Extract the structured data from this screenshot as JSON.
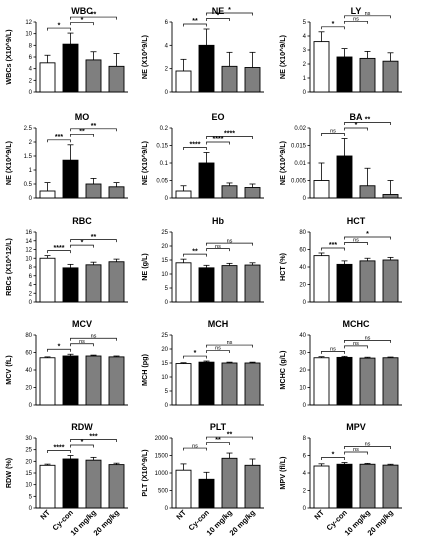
{
  "figure": {
    "categories": [
      "NT",
      "Cy-con",
      "10 mg/kg",
      "20 mg/kg"
    ],
    "colors": {
      "NT": "#ffffff",
      "Cy-con": "#000000",
      "10 mg/kg": "#7f7f7f",
      "20 mg/kg": "#7f7f7f"
    }
  },
  "chart_data": [
    {
      "type": "bar",
      "title": "WBC",
      "ylabel": "WBCs (X10^9/L)",
      "categories": [
        "NT",
        "Cy-con",
        "10 mg/kg",
        "20 mg/kg"
      ],
      "values": [
        5.0,
        8.2,
        5.5,
        4.4
      ],
      "errors": [
        1.3,
        1.9,
        1.4,
        2.2
      ],
      "ylim": [
        0,
        12
      ],
      "yticks": [
        0,
        2,
        4,
        6,
        8,
        10,
        12
      ],
      "significance": [
        {
          "a": 0,
          "b": 1,
          "label": "*"
        },
        {
          "a": 1,
          "b": 2,
          "label": "*"
        },
        {
          "a": 1,
          "b": 3,
          "label": "**"
        }
      ]
    },
    {
      "type": "bar",
      "title": "NE",
      "ylabel": "NE (X10^9/L)",
      "categories": [
        "NT",
        "Cy-con",
        "10 mg/kg",
        "20 mg/kg"
      ],
      "values": [
        1.8,
        4.0,
        2.2,
        2.1
      ],
      "errors": [
        1.0,
        1.4,
        1.2,
        1.3
      ],
      "ylim": [
        0,
        6
      ],
      "yticks": [
        0,
        2,
        4,
        6
      ],
      "significance": [
        {
          "a": 0,
          "b": 1,
          "label": "**"
        },
        {
          "a": 1,
          "b": 2,
          "label": "*"
        },
        {
          "a": 1,
          "b": 3,
          "label": "*"
        }
      ]
    },
    {
      "type": "bar",
      "title": "LY",
      "ylabel": "NE (X10^9/L)",
      "categories": [
        "NT",
        "Cy-con",
        "10 mg/kg",
        "20 mg/kg"
      ],
      "values": [
        3.6,
        2.5,
        2.4,
        2.2
      ],
      "errors": [
        0.7,
        0.6,
        0.5,
        0.6
      ],
      "ylim": [
        0,
        5
      ],
      "yticks": [
        0,
        1,
        2,
        3,
        4,
        5
      ],
      "significance": [
        {
          "a": 0,
          "b": 1,
          "label": "*"
        },
        {
          "a": 1,
          "b": 2,
          "label": "ns"
        },
        {
          "a": 1,
          "b": 3,
          "label": "ns"
        }
      ]
    },
    {
      "type": "bar",
      "title": "MO",
      "ylabel": "NE (X10^9/L)",
      "categories": [
        "NT",
        "Cy-con",
        "10 mg/kg",
        "20 mg/kg"
      ],
      "values": [
        0.25,
        1.35,
        0.5,
        0.4
      ],
      "errors": [
        0.3,
        0.55,
        0.2,
        0.15
      ],
      "ylim": [
        0,
        2.5
      ],
      "yticks": [
        0,
        0.5,
        1.0,
        1.5,
        2.0,
        2.5
      ],
      "significance": [
        {
          "a": 0,
          "b": 1,
          "label": "***"
        },
        {
          "a": 1,
          "b": 2,
          "label": "**"
        },
        {
          "a": 1,
          "b": 3,
          "label": "**"
        }
      ]
    },
    {
      "type": "bar",
      "title": "EO",
      "ylabel": "NE (X10^9/L)",
      "categories": [
        "NT",
        "Cy-con",
        "10 mg/kg",
        "20 mg/kg"
      ],
      "values": [
        0.02,
        0.1,
        0.035,
        0.03
      ],
      "errors": [
        0.015,
        0.03,
        0.008,
        0.01
      ],
      "ylim": [
        0,
        0.2
      ],
      "yticks": [
        0,
        0.05,
        0.1,
        0.15,
        0.2
      ],
      "significance": [
        {
          "a": 0,
          "b": 1,
          "label": "****"
        },
        {
          "a": 1,
          "b": 2,
          "label": "****"
        },
        {
          "a": 1,
          "b": 3,
          "label": "****"
        }
      ]
    },
    {
      "type": "bar",
      "title": "BA",
      "ylabel": "NE (X10^9/L)",
      "categories": [
        "NT",
        "Cy-con",
        "10 mg/kg",
        "20 mg/kg"
      ],
      "values": [
        0.005,
        0.012,
        0.0035,
        0.001
      ],
      "errors": [
        0.005,
        0.005,
        0.005,
        0.004
      ],
      "ylim": [
        0,
        0.02
      ],
      "yticks": [
        0,
        0.005,
        0.01,
        0.015,
        0.02
      ],
      "significance": [
        {
          "a": 0,
          "b": 1,
          "label": "ns"
        },
        {
          "a": 1,
          "b": 2,
          "label": "*"
        },
        {
          "a": 1,
          "b": 3,
          "label": "**"
        }
      ]
    },
    {
      "type": "bar",
      "title": "RBC",
      "ylabel": "RBCs (X10^12/L)",
      "categories": [
        "NT",
        "Cy-con",
        "10 mg/kg",
        "20 mg/kg"
      ],
      "values": [
        10.0,
        7.8,
        8.5,
        9.2
      ],
      "errors": [
        0.6,
        0.8,
        0.6,
        0.6
      ],
      "ylim": [
        0,
        16
      ],
      "yticks": [
        0,
        2,
        4,
        6,
        8,
        10,
        12,
        14,
        16
      ],
      "significance": [
        {
          "a": 0,
          "b": 1,
          "label": "****"
        },
        {
          "a": 1,
          "b": 2,
          "label": "*"
        },
        {
          "a": 1,
          "b": 3,
          "label": "**"
        }
      ]
    },
    {
      "type": "bar",
      "title": "Hb",
      "ylabel": "NE (g/L)",
      "categories": [
        "NT",
        "Cy-con",
        "10 mg/kg",
        "20 mg/kg"
      ],
      "values": [
        14.0,
        12.2,
        13.0,
        13.2
      ],
      "errors": [
        1.3,
        0.9,
        0.8,
        0.8
      ],
      "ylim": [
        0,
        25
      ],
      "yticks": [
        0,
        5,
        10,
        15,
        20,
        25
      ],
      "significance": [
        {
          "a": 0,
          "b": 1,
          "label": "**"
        },
        {
          "a": 1,
          "b": 2,
          "label": "ns"
        },
        {
          "a": 1,
          "b": 3,
          "label": "ns"
        }
      ]
    },
    {
      "type": "bar",
      "title": "HCT",
      "ylabel": "HCT (%)",
      "categories": [
        "NT",
        "Cy-con",
        "10 mg/kg",
        "20 mg/kg"
      ],
      "values": [
        53,
        43,
        47,
        48
      ],
      "errors": [
        3,
        4,
        3,
        3
      ],
      "ylim": [
        0,
        80
      ],
      "yticks": [
        0,
        20,
        40,
        60,
        80
      ],
      "significance": [
        {
          "a": 0,
          "b": 1,
          "label": "***"
        },
        {
          "a": 1,
          "b": 2,
          "label": "ns"
        },
        {
          "a": 1,
          "b": 3,
          "label": "*"
        }
      ]
    },
    {
      "type": "bar",
      "title": "MCV",
      "ylabel": "MCV (fL)",
      "categories": [
        "NT",
        "Cy-con",
        "10 mg/kg",
        "20 mg/kg"
      ],
      "values": [
        54,
        56,
        56,
        55
      ],
      "errors": [
        1,
        2,
        1,
        1
      ],
      "ylim": [
        0,
        80
      ],
      "yticks": [
        0,
        20,
        40,
        60,
        80
      ],
      "significance": [
        {
          "a": 0,
          "b": 1,
          "label": "*"
        },
        {
          "a": 1,
          "b": 2,
          "label": "ns"
        },
        {
          "a": 1,
          "b": 3,
          "label": "ns"
        }
      ]
    },
    {
      "type": "bar",
      "title": "MCH",
      "ylabel": "MCH (pg)",
      "categories": [
        "NT",
        "Cy-con",
        "10 mg/kg",
        "20 mg/kg"
      ],
      "values": [
        14.8,
        15.3,
        15.0,
        15.0
      ],
      "errors": [
        0.3,
        0.4,
        0.3,
        0.3
      ],
      "ylim": [
        0,
        25
      ],
      "yticks": [
        0,
        5,
        10,
        15,
        20,
        25
      ],
      "significance": [
        {
          "a": 0,
          "b": 1,
          "label": "*"
        },
        {
          "a": 1,
          "b": 2,
          "label": "ns"
        },
        {
          "a": 1,
          "b": 3,
          "label": "ns"
        }
      ]
    },
    {
      "type": "bar",
      "title": "MCHC",
      "ylabel": "MCHC (g/L)",
      "categories": [
        "NT",
        "Cy-con",
        "10 mg/kg",
        "20 mg/kg"
      ],
      "values": [
        27.0,
        27.2,
        26.8,
        27.0
      ],
      "errors": [
        0.6,
        0.6,
        0.5,
        0.4
      ],
      "ylim": [
        0,
        40
      ],
      "yticks": [
        0,
        10,
        20,
        30,
        40
      ],
      "significance": [
        {
          "a": 0,
          "b": 1,
          "label": "ns"
        },
        {
          "a": 1,
          "b": 2,
          "label": "ns"
        },
        {
          "a": 1,
          "b": 3,
          "label": "ns"
        }
      ]
    },
    {
      "type": "bar",
      "title": "RDW",
      "ylabel": "RDW (%)",
      "categories": [
        "NT",
        "Cy-con",
        "10 mg/kg",
        "20 mg/kg"
      ],
      "values": [
        18.3,
        21.0,
        20.5,
        18.6
      ],
      "errors": [
        0.5,
        1.5,
        1.2,
        0.6
      ],
      "ylim": [
        0,
        30
      ],
      "yticks": [
        0,
        5,
        10,
        15,
        20,
        25,
        30
      ],
      "significance": [
        {
          "a": 0,
          "b": 1,
          "label": "****"
        },
        {
          "a": 1,
          "b": 2,
          "label": "*"
        },
        {
          "a": 1,
          "b": 3,
          "label": "***"
        }
      ]
    },
    {
      "type": "bar",
      "title": "PLT",
      "ylabel": "PLT (X10^9/L)",
      "categories": [
        "NT",
        "Cy-con",
        "10 mg/kg",
        "20 mg/kg"
      ],
      "values": [
        1080,
        820,
        1420,
        1220
      ],
      "errors": [
        180,
        200,
        150,
        180
      ],
      "ylim": [
        0,
        2000
      ],
      "yticks": [
        0,
        500,
        1000,
        1500,
        2000
      ],
      "significance": [
        {
          "a": 0,
          "b": 1,
          "label": "ns"
        },
        {
          "a": 1,
          "b": 2,
          "label": "**"
        },
        {
          "a": 1,
          "b": 3,
          "label": "**"
        }
      ]
    },
    {
      "type": "bar",
      "title": "MPV",
      "ylabel": "MPV (fl/L)",
      "categories": [
        "NT",
        "Cy-con",
        "10 mg/kg",
        "20 mg/kg"
      ],
      "values": [
        4.8,
        5.0,
        5.0,
        4.9
      ],
      "errors": [
        0.25,
        0.2,
        0.1,
        0.1
      ],
      "ylim": [
        0,
        8
      ],
      "yticks": [
        0,
        2,
        4,
        6,
        8
      ],
      "significance": [
        {
          "a": 0,
          "b": 1,
          "label": "*"
        },
        {
          "a": 1,
          "b": 2,
          "label": "ns"
        },
        {
          "a": 1,
          "b": 3,
          "label": "ns"
        }
      ]
    }
  ]
}
